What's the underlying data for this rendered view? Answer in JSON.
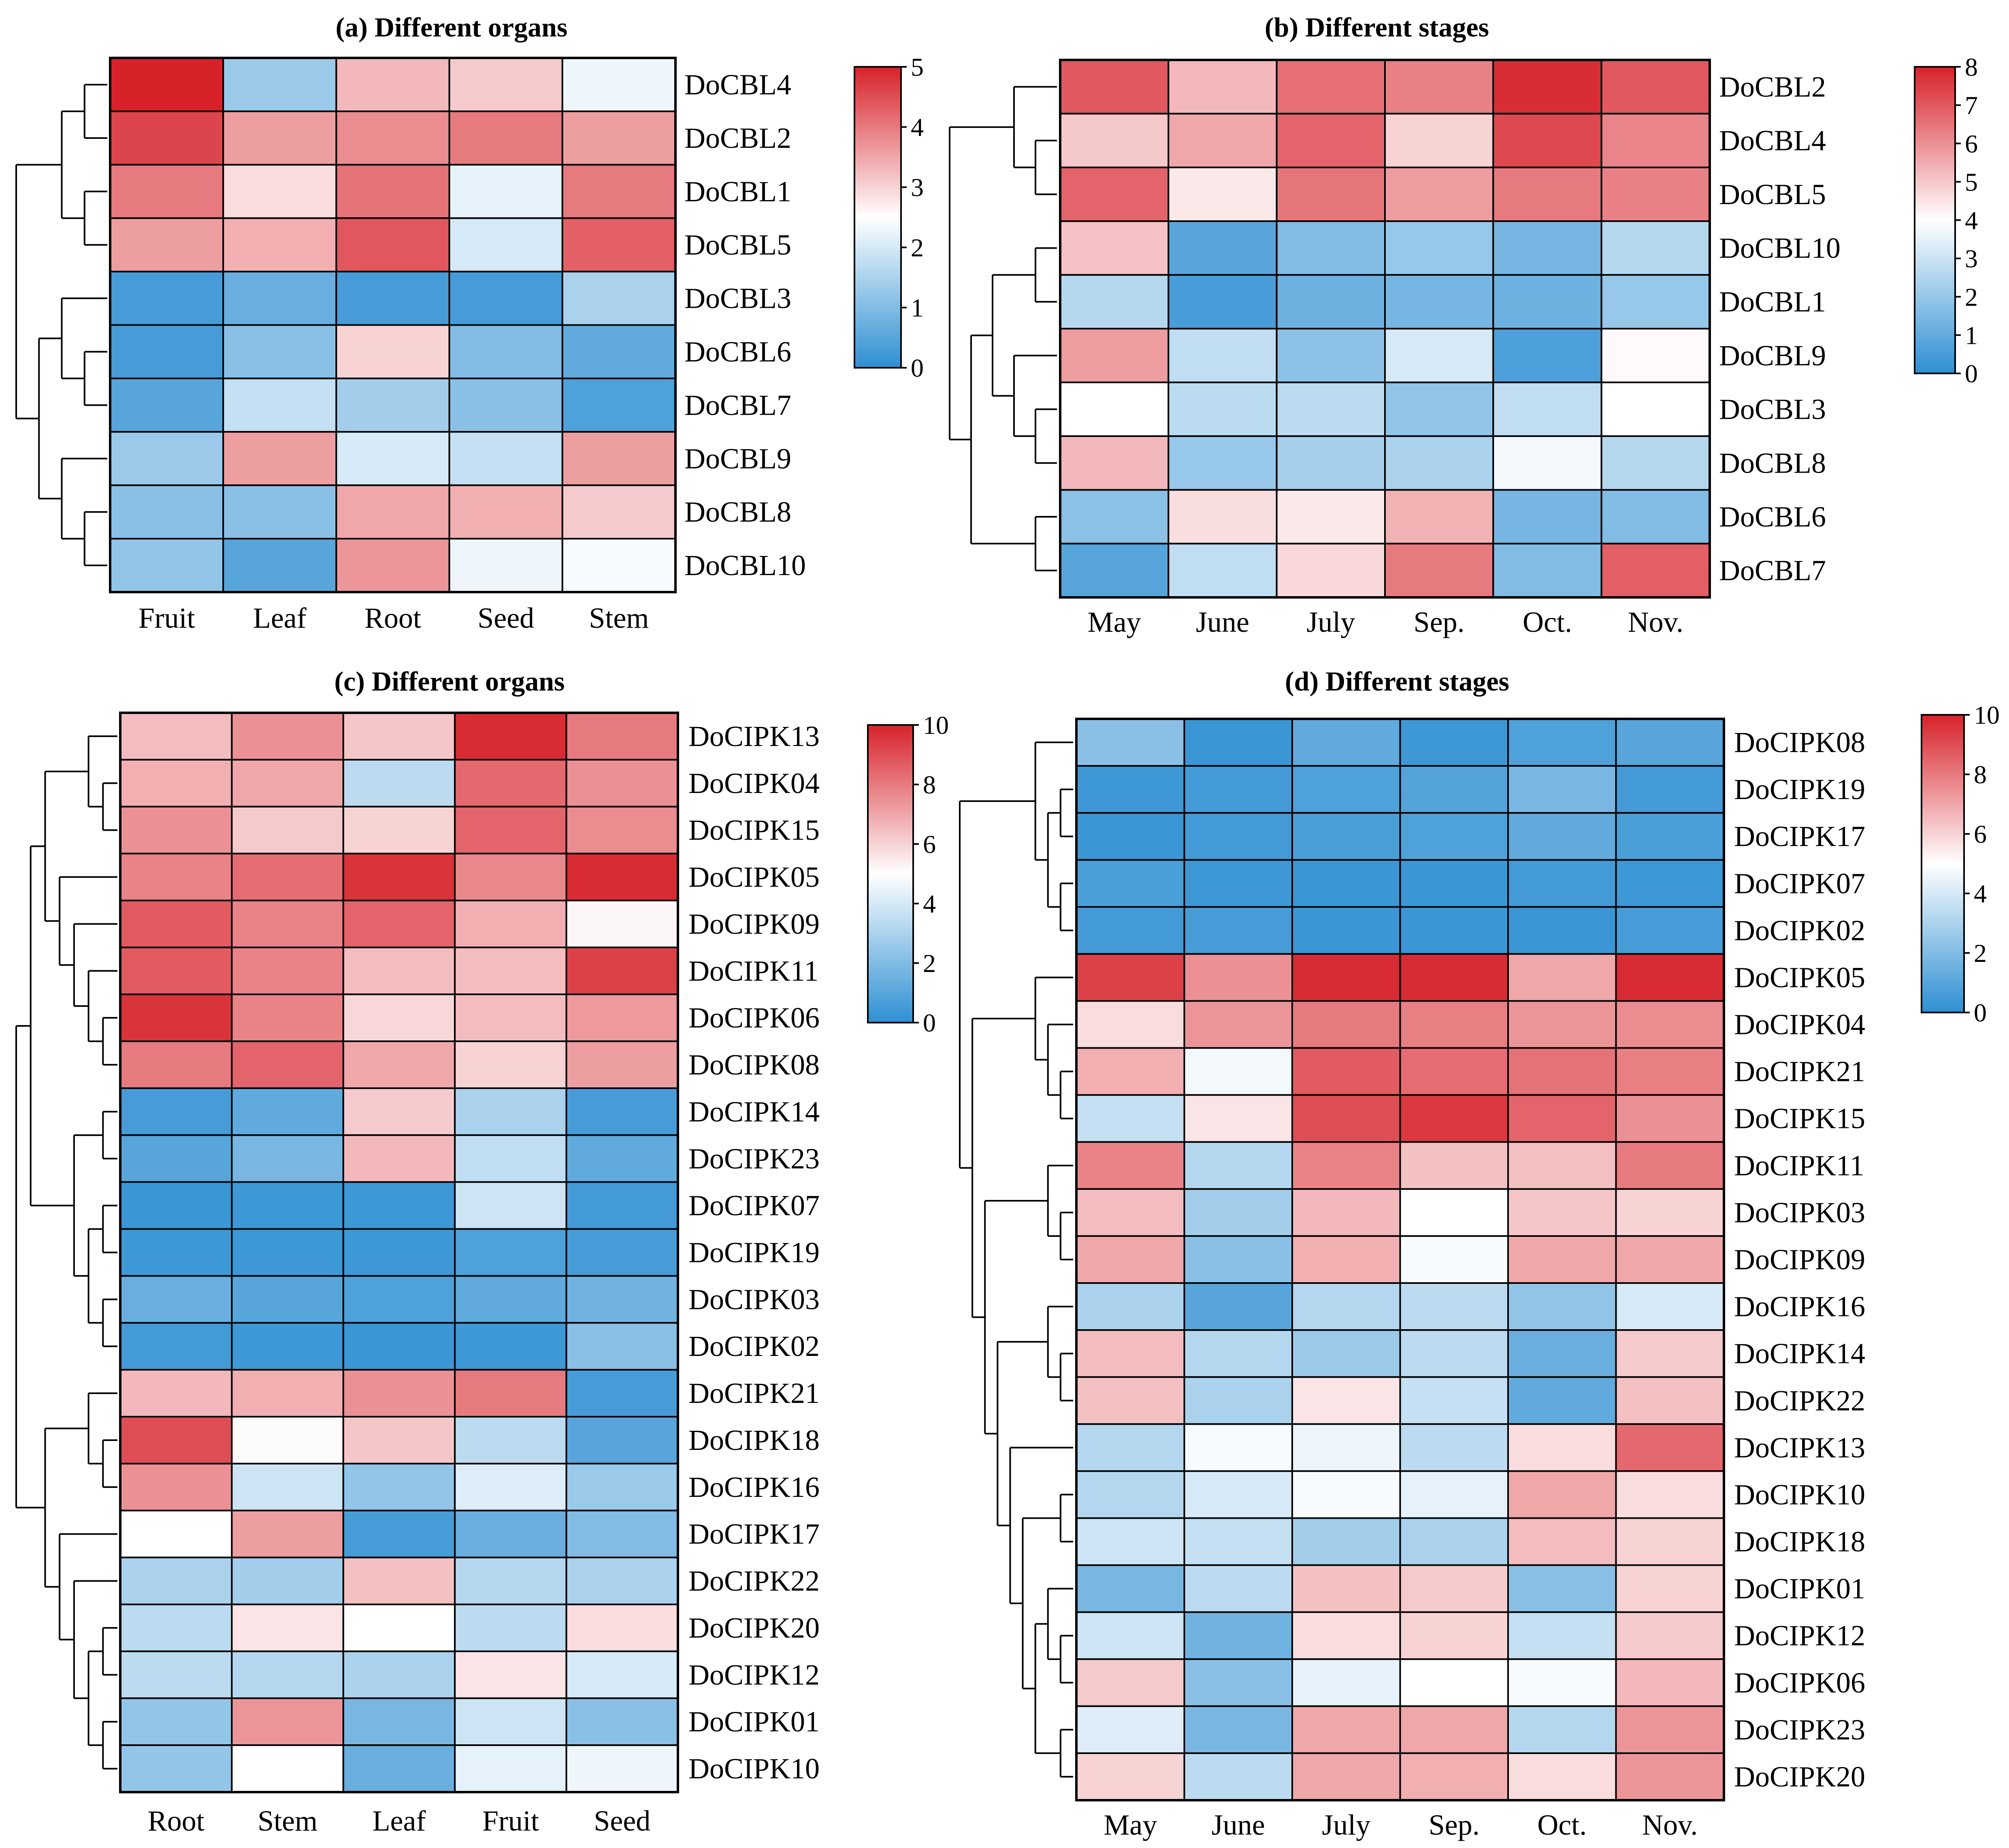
{
  "colors": {
    "low": "#2e8fd2",
    "mid": "#ffffff",
    "high": "#d7222a",
    "line": "#000000"
  },
  "chart_data": [
    {
      "id": "a",
      "type": "heatmap",
      "title": "(a) Different organs",
      "columns": [
        "Fruit",
        "Leaf",
        "Root",
        "Seed",
        "Stem"
      ],
      "rows": [
        "DoCBL4",
        "DoCBL2",
        "DoCBL1",
        "DoCBL5",
        "DoCBL3",
        "DoCBL6",
        "DoCBL7",
        "DoCBL9",
        "DoCBL8",
        "DoCBL10"
      ],
      "values": [
        [
          5.0,
          1.3,
          3.3,
          3.1,
          2.3
        ],
        [
          4.6,
          3.6,
          3.8,
          4.0,
          3.6
        ],
        [
          4.0,
          2.9,
          4.1,
          2.2,
          4.0
        ],
        [
          3.6,
          3.4,
          4.4,
          2.0,
          4.3
        ],
        [
          0.3,
          0.7,
          0.3,
          0.3,
          1.5
        ],
        [
          0.3,
          1.1,
          3.0,
          1.0,
          0.6
        ],
        [
          0.5,
          1.8,
          1.4,
          1.1,
          0.4
        ],
        [
          1.3,
          3.6,
          2.0,
          1.8,
          3.6
        ],
        [
          1.1,
          1.1,
          3.5,
          3.4,
          3.1
        ],
        [
          1.2,
          0.5,
          3.7,
          2.3,
          2.4
        ]
      ],
      "scale": {
        "min": 0,
        "mid": 2.5,
        "max": 5,
        "ticks": [
          0,
          1,
          2,
          3,
          4,
          5
        ]
      }
    },
    {
      "id": "b",
      "type": "heatmap",
      "title": "(b) Different stages",
      "columns": [
        "May",
        "June",
        "July",
        "Sep.",
        "Oct.",
        "Nov."
      ],
      "rows": [
        "DoCBL2",
        "DoCBL4",
        "DoCBL5",
        "DoCBL10",
        "DoCBL1",
        "DoCBL9",
        "DoCBL3",
        "DoCBL8",
        "DoCBL6",
        "DoCBL7"
      ],
      "values": [
        [
          7.0,
          5.3,
          6.6,
          6.3,
          7.8,
          7.0
        ],
        [
          5.0,
          5.6,
          6.8,
          4.8,
          7.3,
          6.2
        ],
        [
          6.8,
          4.4,
          6.5,
          5.8,
          6.4,
          6.3
        ],
        [
          5.1,
          0.8,
          1.6,
          2.0,
          1.4,
          2.6
        ],
        [
          2.6,
          0.5,
          1.2,
          1.4,
          1.2,
          2.0
        ],
        [
          5.8,
          2.8,
          1.8,
          3.2,
          0.6,
          4.1
        ],
        [
          4.0,
          2.7,
          2.7,
          1.9,
          2.8,
          4.0
        ],
        [
          5.3,
          2.0,
          2.3,
          2.4,
          3.8,
          2.6
        ],
        [
          1.8,
          4.6,
          4.4,
          5.4,
          1.4,
          1.6
        ],
        [
          0.8,
          2.8,
          4.7,
          6.4,
          1.6,
          6.9
        ]
      ],
      "scale": {
        "min": 0,
        "mid": 4,
        "max": 8,
        "ticks": [
          0,
          1,
          2,
          3,
          4,
          5,
          6,
          7,
          8
        ]
      }
    },
    {
      "id": "c",
      "type": "heatmap",
      "title": "(c) Different organs",
      "columns": [
        "Root",
        "Stem",
        "Leaf",
        "Fruit",
        "Seed"
      ],
      "rows": [
        "DoCIPK13",
        "DoCIPK04",
        "DoCIPK15",
        "DoCIPK05",
        "DoCIPK09",
        "DoCIPK11",
        "DoCIPK06",
        "DoCIPK08",
        "DoCIPK14",
        "DoCIPK23",
        "DoCIPK07",
        "DoCIPK19",
        "DoCIPK03",
        "DoCIPK02",
        "DoCIPK21",
        "DoCIPK18",
        "DoCIPK16",
        "DoCIPK17",
        "DoCIPK22",
        "DoCIPK20",
        "DoCIPK12",
        "DoCIPK01",
        "DoCIPK10"
      ],
      "values": [
        [
          6.5,
          7.5,
          6.3,
          9.8,
          8.0
        ],
        [
          6.8,
          7.0,
          3.4,
          8.4,
          7.5
        ],
        [
          7.5,
          6.2,
          6.0,
          8.5,
          7.6
        ],
        [
          7.8,
          8.3,
          9.6,
          7.7,
          9.8
        ],
        [
          8.7,
          7.8,
          8.5,
          6.8,
          5.2
        ],
        [
          8.7,
          7.8,
          6.5,
          6.5,
          9.3
        ],
        [
          9.6,
          7.8,
          5.9,
          6.5,
          7.3
        ],
        [
          8.0,
          8.5,
          7.0,
          6.0,
          7.2
        ],
        [
          0.6,
          1.2,
          6.2,
          3.0,
          0.6
        ],
        [
          1.0,
          1.8,
          6.6,
          3.5,
          1.2
        ],
        [
          0.3,
          0.4,
          0.4,
          3.8,
          0.5
        ],
        [
          0.4,
          0.4,
          0.4,
          0.8,
          0.6
        ],
        [
          1.4,
          1.0,
          0.8,
          1.2,
          1.6
        ],
        [
          0.5,
          0.4,
          0.3,
          0.4,
          2.2
        ],
        [
          6.6,
          6.8,
          7.5,
          8.0,
          0.6
        ],
        [
          9.0,
          5.1,
          6.3,
          3.4,
          1.0
        ],
        [
          7.5,
          3.8,
          2.4,
          4.2,
          2.6
        ],
        [
          5.0,
          7.2,
          0.6,
          1.4,
          2.0
        ],
        [
          3.0,
          2.8,
          6.4,
          3.2,
          3.0
        ],
        [
          3.4,
          5.6,
          5.0,
          3.4,
          5.8
        ],
        [
          3.4,
          3.2,
          3.0,
          5.6,
          4.0
        ],
        [
          2.4,
          7.4,
          1.8,
          3.8,
          2.2
        ],
        [
          2.4,
          5.0,
          1.4,
          4.4,
          4.6
        ]
      ],
      "scale": {
        "min": 0,
        "mid": 5,
        "max": 10,
        "ticks": [
          0,
          2,
          4,
          6,
          8,
          10
        ]
      }
    },
    {
      "id": "d",
      "type": "heatmap",
      "title": "(d) Different stages",
      "columns": [
        "May",
        "June",
        "July",
        "Sep.",
        "Oct.",
        "Nov."
      ],
      "rows": [
        "DoCIPK08",
        "DoCIPK19",
        "DoCIPK17",
        "DoCIPK07",
        "DoCIPK02",
        "DoCIPK05",
        "DoCIPK04",
        "DoCIPK21",
        "DoCIPK15",
        "DoCIPK11",
        "DoCIPK03",
        "DoCIPK09",
        "DoCIPK16",
        "DoCIPK14",
        "DoCIPK22",
        "DoCIPK13",
        "DoCIPK10",
        "DoCIPK18",
        "DoCIPK01",
        "DoCIPK12",
        "DoCIPK06",
        "DoCIPK23",
        "DoCIPK20"
      ],
      "values": [
        [
          2.2,
          0.3,
          1.2,
          0.4,
          0.8,
          1.0
        ],
        [
          0.4,
          0.5,
          0.8,
          0.9,
          1.8,
          0.5
        ],
        [
          0.3,
          0.5,
          0.7,
          0.8,
          1.2,
          0.7
        ],
        [
          0.7,
          0.4,
          0.3,
          0.3,
          0.5,
          0.4
        ],
        [
          0.5,
          0.6,
          0.3,
          0.3,
          0.3,
          0.6
        ],
        [
          9.3,
          7.5,
          9.8,
          9.8,
          7.0,
          9.8
        ],
        [
          5.8,
          7.4,
          8.0,
          7.9,
          7.4,
          7.6
        ],
        [
          6.8,
          4.7,
          8.7,
          8.3,
          8.2,
          7.9
        ],
        [
          3.6,
          5.6,
          9.0,
          9.5,
          8.5,
          7.5
        ],
        [
          7.8,
          3.2,
          7.8,
          6.4,
          6.4,
          8.0
        ],
        [
          6.5,
          2.8,
          6.6,
          5.0,
          6.3,
          6.0
        ],
        [
          7.0,
          2.2,
          6.8,
          4.8,
          7.0,
          7.0
        ],
        [
          3.0,
          1.0,
          3.2,
          3.4,
          2.4,
          4.0
        ],
        [
          6.5,
          3.2,
          2.6,
          3.4,
          1.4,
          6.2
        ],
        [
          6.4,
          3.0,
          5.6,
          3.6,
          1.2,
          6.4
        ],
        [
          3.2,
          4.8,
          4.6,
          3.4,
          5.8,
          8.4
        ],
        [
          3.2,
          4.0,
          4.8,
          4.4,
          7.0,
          5.8
        ],
        [
          3.8,
          3.6,
          2.8,
          3.0,
          6.5,
          6.0
        ],
        [
          1.8,
          3.4,
          6.4,
          6.2,
          2.2,
          6.0
        ],
        [
          3.8,
          1.6,
          5.8,
          6.0,
          3.6,
          6.2
        ],
        [
          6.2,
          2.2,
          4.4,
          5.0,
          4.8,
          6.6
        ],
        [
          4.2,
          1.8,
          7.0,
          7.0,
          3.2,
          7.4
        ],
        [
          6.0,
          3.4,
          7.0,
          6.8,
          5.8,
          7.4
        ]
      ],
      "scale": {
        "min": 0,
        "mid": 5,
        "max": 10,
        "ticks": [
          0,
          2,
          4,
          6,
          8,
          10
        ]
      }
    }
  ]
}
